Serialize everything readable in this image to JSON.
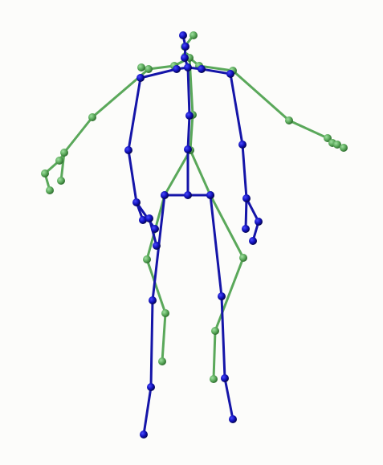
{
  "figure": {
    "colors": {
      "background": "#fcfcfa",
      "pose_a_bone": "#5aa85a",
      "pose_a_joint": "#5fae5f",
      "pose_b_bone": "#1515a8",
      "pose_b_joint": "#1010b8"
    },
    "skeletons": [
      {
        "name": "green-skeleton",
        "color_key": "pose_a"
      },
      {
        "name": "blue-skeleton",
        "color_key": "pose_b"
      }
    ]
  }
}
